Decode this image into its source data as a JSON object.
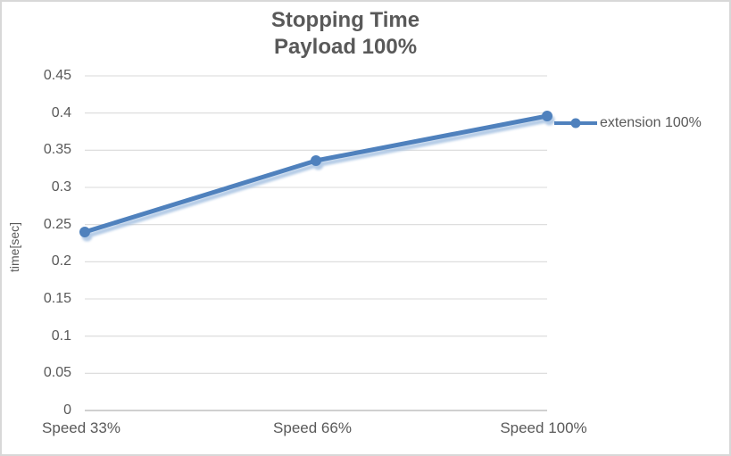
{
  "chart": {
    "title_line1": "Stopping Time",
    "title_line2": "Payload 100%",
    "legend_label": "extension 100%"
  },
  "chart_data": {
    "type": "line",
    "title": "Stopping Time Payload 100%",
    "categories": [
      "Speed 33%",
      "Speed 66%",
      "Speed 100%"
    ],
    "series": [
      {
        "name": "extension 100%",
        "values": [
          0.24,
          0.336,
          0.396
        ]
      }
    ],
    "xlabel": "",
    "ylabel": "time[sec]",
    "ylim": [
      0,
      0.45
    ],
    "ytick_step": 0.05,
    "y_tick_labels": [
      "0",
      "0.05",
      "0.1",
      "0.15",
      "0.2",
      "0.25",
      "0.3",
      "0.35",
      "0.4",
      "0.45"
    ],
    "grid": true,
    "legend_position": "right",
    "marker": "circle",
    "colors": {
      "line": "#4f81bd",
      "line_shadow": "#a7c2e2",
      "grid": "#d9d9d9",
      "axis": "#c0c0c0",
      "text": "#595959",
      "background": "#ffffff",
      "border": "#d8d8d8"
    }
  }
}
